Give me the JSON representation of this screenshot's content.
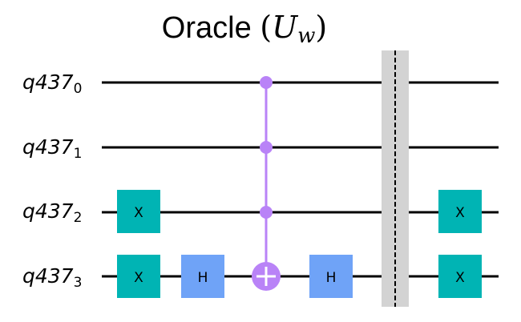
{
  "title": {
    "text": "Oracle",
    "math_symbol": "U",
    "math_subscript": "w"
  },
  "qubits": [
    {
      "name": "q437",
      "index": "0"
    },
    {
      "name": "q437",
      "index": "1"
    },
    {
      "name": "q437",
      "index": "2"
    },
    {
      "name": "q437",
      "index": "3"
    }
  ],
  "gates": {
    "x_label": "X",
    "h_label": "H"
  },
  "colors": {
    "x_gate": "#00b4b4",
    "h_gate": "#6fa3f7",
    "control": "#b983f7",
    "barrier": "#d3d3d3",
    "wire": "#000000"
  }
}
